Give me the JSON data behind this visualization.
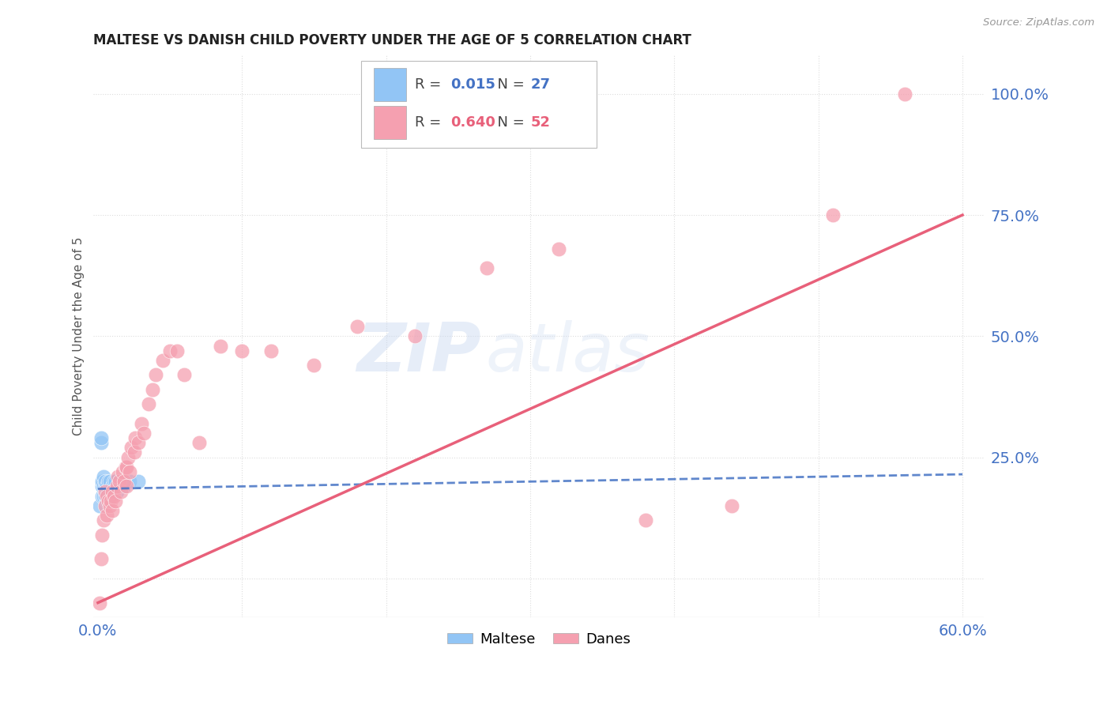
{
  "title": "MALTESE VS DANISH CHILD POVERTY UNDER THE AGE OF 5 CORRELATION CHART",
  "source": "Source: ZipAtlas.com",
  "ylabel": "Child Poverty Under the Age of 5",
  "xlim_min": -0.003,
  "xlim_max": 0.615,
  "ylim_min": -0.08,
  "ylim_max": 1.08,
  "xticks": [
    0.0,
    0.1,
    0.2,
    0.3,
    0.4,
    0.5,
    0.6
  ],
  "xticklabels": [
    "0.0%",
    "",
    "",
    "",
    "",
    "",
    "60.0%"
  ],
  "yticks_right": [
    0.0,
    0.25,
    0.5,
    0.75,
    1.0
  ],
  "yticklabels_right": [
    "",
    "25.0%",
    "50.0%",
    "75.0%",
    "100.0%"
  ],
  "maltese_R": 0.015,
  "maltese_N": 27,
  "danes_R": 0.64,
  "danes_N": 52,
  "maltese_color": "#92C5F5",
  "danes_color": "#F5A0B0",
  "trend_maltese_color": "#4472C4",
  "trend_danes_color": "#E8607A",
  "watermark_zip": "ZIP",
  "watermark_atlas": "atlas",
  "watermark_color_zip": "#C8D8F0",
  "watermark_color_atlas": "#C8D8F0",
  "legend_maltese_label": "Maltese",
  "legend_danes_label": "Danes",
  "maltese_x": [
    0.001,
    0.002,
    0.002,
    0.003,
    0.003,
    0.003,
    0.004,
    0.004,
    0.004,
    0.005,
    0.005,
    0.005,
    0.006,
    0.006,
    0.007,
    0.007,
    0.008,
    0.008,
    0.009,
    0.01,
    0.011,
    0.012,
    0.013,
    0.015,
    0.018,
    0.022,
    0.028
  ],
  "maltese_y": [
    0.15,
    0.28,
    0.29,
    0.17,
    0.19,
    0.2,
    0.17,
    0.19,
    0.21,
    0.17,
    0.19,
    0.2,
    0.16,
    0.19,
    0.18,
    0.2,
    0.17,
    0.2,
    0.18,
    0.19,
    0.2,
    0.2,
    0.18,
    0.19,
    0.19,
    0.2,
    0.2
  ],
  "danes_x": [
    0.001,
    0.002,
    0.003,
    0.004,
    0.005,
    0.005,
    0.006,
    0.006,
    0.007,
    0.008,
    0.009,
    0.01,
    0.01,
    0.011,
    0.012,
    0.013,
    0.014,
    0.015,
    0.016,
    0.017,
    0.018,
    0.019,
    0.02,
    0.02,
    0.021,
    0.022,
    0.023,
    0.025,
    0.026,
    0.028,
    0.03,
    0.032,
    0.035,
    0.038,
    0.04,
    0.045,
    0.05,
    0.055,
    0.06,
    0.07,
    0.085,
    0.1,
    0.12,
    0.15,
    0.18,
    0.22,
    0.27,
    0.32,
    0.38,
    0.44,
    0.51,
    0.56
  ],
  "danes_y": [
    -0.05,
    0.04,
    0.09,
    0.12,
    0.15,
    0.18,
    0.13,
    0.17,
    0.16,
    0.15,
    0.16,
    0.14,
    0.18,
    0.17,
    0.16,
    0.19,
    0.21,
    0.2,
    0.18,
    0.22,
    0.2,
    0.23,
    0.19,
    0.23,
    0.25,
    0.22,
    0.27,
    0.26,
    0.29,
    0.28,
    0.32,
    0.3,
    0.36,
    0.39,
    0.42,
    0.45,
    0.47,
    0.47,
    0.42,
    0.28,
    0.48,
    0.47,
    0.47,
    0.44,
    0.52,
    0.5,
    0.64,
    0.68,
    0.12,
    0.15,
    0.75,
    1.0
  ]
}
